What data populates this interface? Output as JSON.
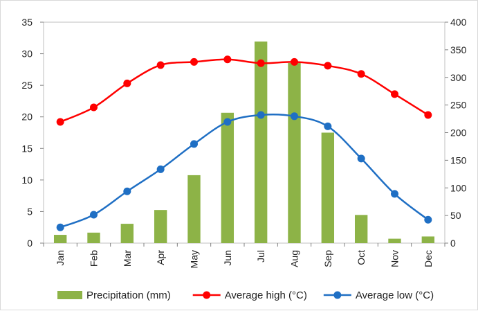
{
  "chart_data": {
    "type": "bar",
    "title": "",
    "categories": [
      "Jan",
      "Feb",
      "Mar",
      "Apr",
      "May",
      "Jun",
      "Jul",
      "Aug",
      "Sep",
      "Oct",
      "Nov",
      "Dec"
    ],
    "y_left": {
      "range": [
        0,
        35
      ],
      "ticks": [
        0,
        5,
        10,
        15,
        20,
        25,
        30,
        35
      ]
    },
    "y_right": {
      "range": [
        0,
        400
      ],
      "ticks": [
        0,
        50,
        100,
        150,
        200,
        250,
        300,
        350,
        400
      ]
    },
    "series": [
      {
        "name": "Precipitation (mm)",
        "type": "bar",
        "axis": "right",
        "color": "#8db347",
        "values": [
          15,
          19,
          35,
          60,
          123,
          236,
          365,
          326,
          200,
          51,
          8,
          12
        ]
      },
      {
        "name": "Average high (°C)",
        "type": "line",
        "axis": "left",
        "color": "#ff0000",
        "values": [
          19.2,
          21.5,
          25.3,
          28.2,
          28.7,
          29.1,
          28.5,
          28.7,
          28.1,
          26.8,
          23.6,
          20.3
        ]
      },
      {
        "name": "Average low (°C)",
        "type": "line",
        "axis": "left",
        "color": "#1f6fc4",
        "values": [
          2.5,
          4.5,
          8.2,
          11.7,
          15.7,
          19.2,
          20.3,
          20.1,
          18.5,
          13.4,
          7.8,
          3.7
        ]
      }
    ],
    "grid": false,
    "legend_position": "bottom"
  }
}
